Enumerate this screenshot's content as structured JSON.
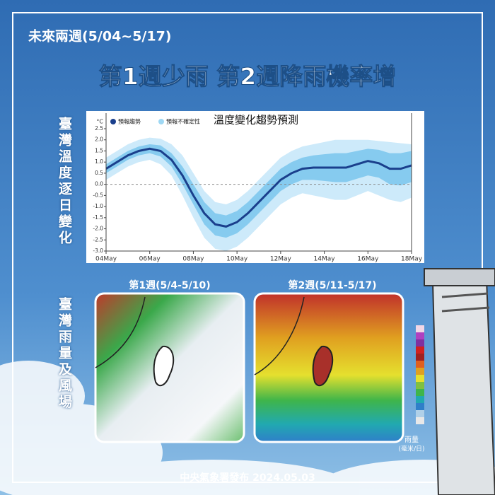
{
  "header": {
    "period": "未來兩週(5/04~5/17)",
    "headline": "第1週少雨  第2週降雨機率增"
  },
  "side_labels": [
    "臺灣溫度逐日變化",
    "臺灣雨量及風場"
  ],
  "maps": [
    {
      "title": "第1週(5/4-5/10)"
    },
    {
      "title": "第2週(5/11-5/17)"
    }
  ],
  "rain_scale": {
    "title": "雨量",
    "unit": "(毫米/日)"
  },
  "footer": "中央氣象署發布 2024.05.03",
  "chart_data": {
    "type": "line",
    "title": "溫度變化趨勢預測",
    "y_label": "°C",
    "x": [
      4,
      4.5,
      5,
      5.5,
      6,
      6.5,
      7,
      7.5,
      8,
      8.5,
      9,
      9.5,
      10,
      10.5,
      11,
      11.5,
      12,
      12.5,
      13,
      13.5,
      14,
      14.5,
      15,
      15.5,
      16,
      16.5,
      17,
      17.5,
      18
    ],
    "xlim": [
      4,
      18
    ],
    "xticks": [
      {
        "value": 4,
        "label": "04May"
      },
      {
        "value": 6,
        "label": "06May"
      },
      {
        "value": 8,
        "label": "08May"
      },
      {
        "value": 10,
        "label": "10May"
      },
      {
        "value": 12,
        "label": "12May"
      },
      {
        "value": 14,
        "label": "14May"
      },
      {
        "value": 16,
        "label": "16May"
      },
      {
        "value": 18,
        "label": "18May"
      }
    ],
    "ylim": [
      -3,
      3.2
    ],
    "yticks": [
      {
        "value": -3,
        "label": "-3.0"
      },
      -2.5,
      {
        "value": -2,
        "label": "-2.0"
      },
      -1.5,
      {
        "value": -1,
        "label": "-1.0"
      },
      -0.5,
      {
        "value": 0,
        "label": "0.0"
      },
      0.5,
      {
        "value": 1,
        "label": "1.0"
      },
      1.5,
      {
        "value": 2,
        "label": "2.0"
      },
      2.5
    ],
    "zero_line": true,
    "series": [
      {
        "name": "預報趨勢",
        "color": "#1a3f8c",
        "values": [
          0.7,
          1.0,
          1.3,
          1.5,
          1.6,
          1.5,
          1.1,
          0.4,
          -0.5,
          -1.3,
          -1.8,
          -1.9,
          -1.7,
          -1.3,
          -0.8,
          -0.3,
          0.2,
          0.5,
          0.7,
          0.75,
          0.75,
          0.75,
          0.75,
          0.9,
          1.05,
          0.95,
          0.7,
          0.7,
          0.85
        ]
      },
      {
        "name": "預報不確定性",
        "color": "#9fd8f4",
        "bands": [
          {
            "color": "#cdeafa",
            "upper": [
              1.2,
              1.5,
              1.8,
              2.0,
              2.1,
              2.05,
              1.8,
              1.3,
              0.5,
              -0.3,
              -0.8,
              -0.9,
              -0.7,
              -0.3,
              0.2,
              0.7,
              1.2,
              1.5,
              1.7,
              1.8,
              1.9,
              2.0,
              2.0,
              2.0,
              2.0,
              1.95,
              1.9,
              1.85,
              1.8
            ],
            "lower": [
              0.2,
              0.5,
              0.8,
              1.0,
              1.1,
              0.9,
              0.4,
              -0.5,
              -1.5,
              -2.4,
              -2.9,
              -3.0,
              -2.8,
              -2.4,
              -1.9,
              -1.4,
              -0.9,
              -0.6,
              -0.4,
              -0.5,
              -0.6,
              -0.7,
              -0.7,
              -0.5,
              -0.3,
              -0.5,
              -0.7,
              -0.8,
              -0.6
            ]
          },
          {
            "color": "#86cbef",
            "upper": [
              0.9,
              1.2,
              1.5,
              1.7,
              1.8,
              1.75,
              1.4,
              0.8,
              0.0,
              -0.8,
              -1.3,
              -1.4,
              -1.2,
              -0.8,
              -0.3,
              0.2,
              0.7,
              1.0,
              1.2,
              1.3,
              1.35,
              1.4,
              1.4,
              1.5,
              1.6,
              1.55,
              1.4,
              1.4,
              1.5
            ],
            "lower": [
              0.5,
              0.8,
              1.1,
              1.3,
              1.4,
              1.25,
              0.8,
              0.0,
              -0.9,
              -1.8,
              -2.3,
              -2.4,
              -2.2,
              -1.8,
              -1.3,
              -0.8,
              -0.3,
              0.0,
              0.2,
              0.2,
              0.15,
              0.1,
              0.1,
              0.25,
              0.4,
              0.3,
              0.0,
              -0.05,
              0.1
            ]
          }
        ]
      }
    ]
  }
}
